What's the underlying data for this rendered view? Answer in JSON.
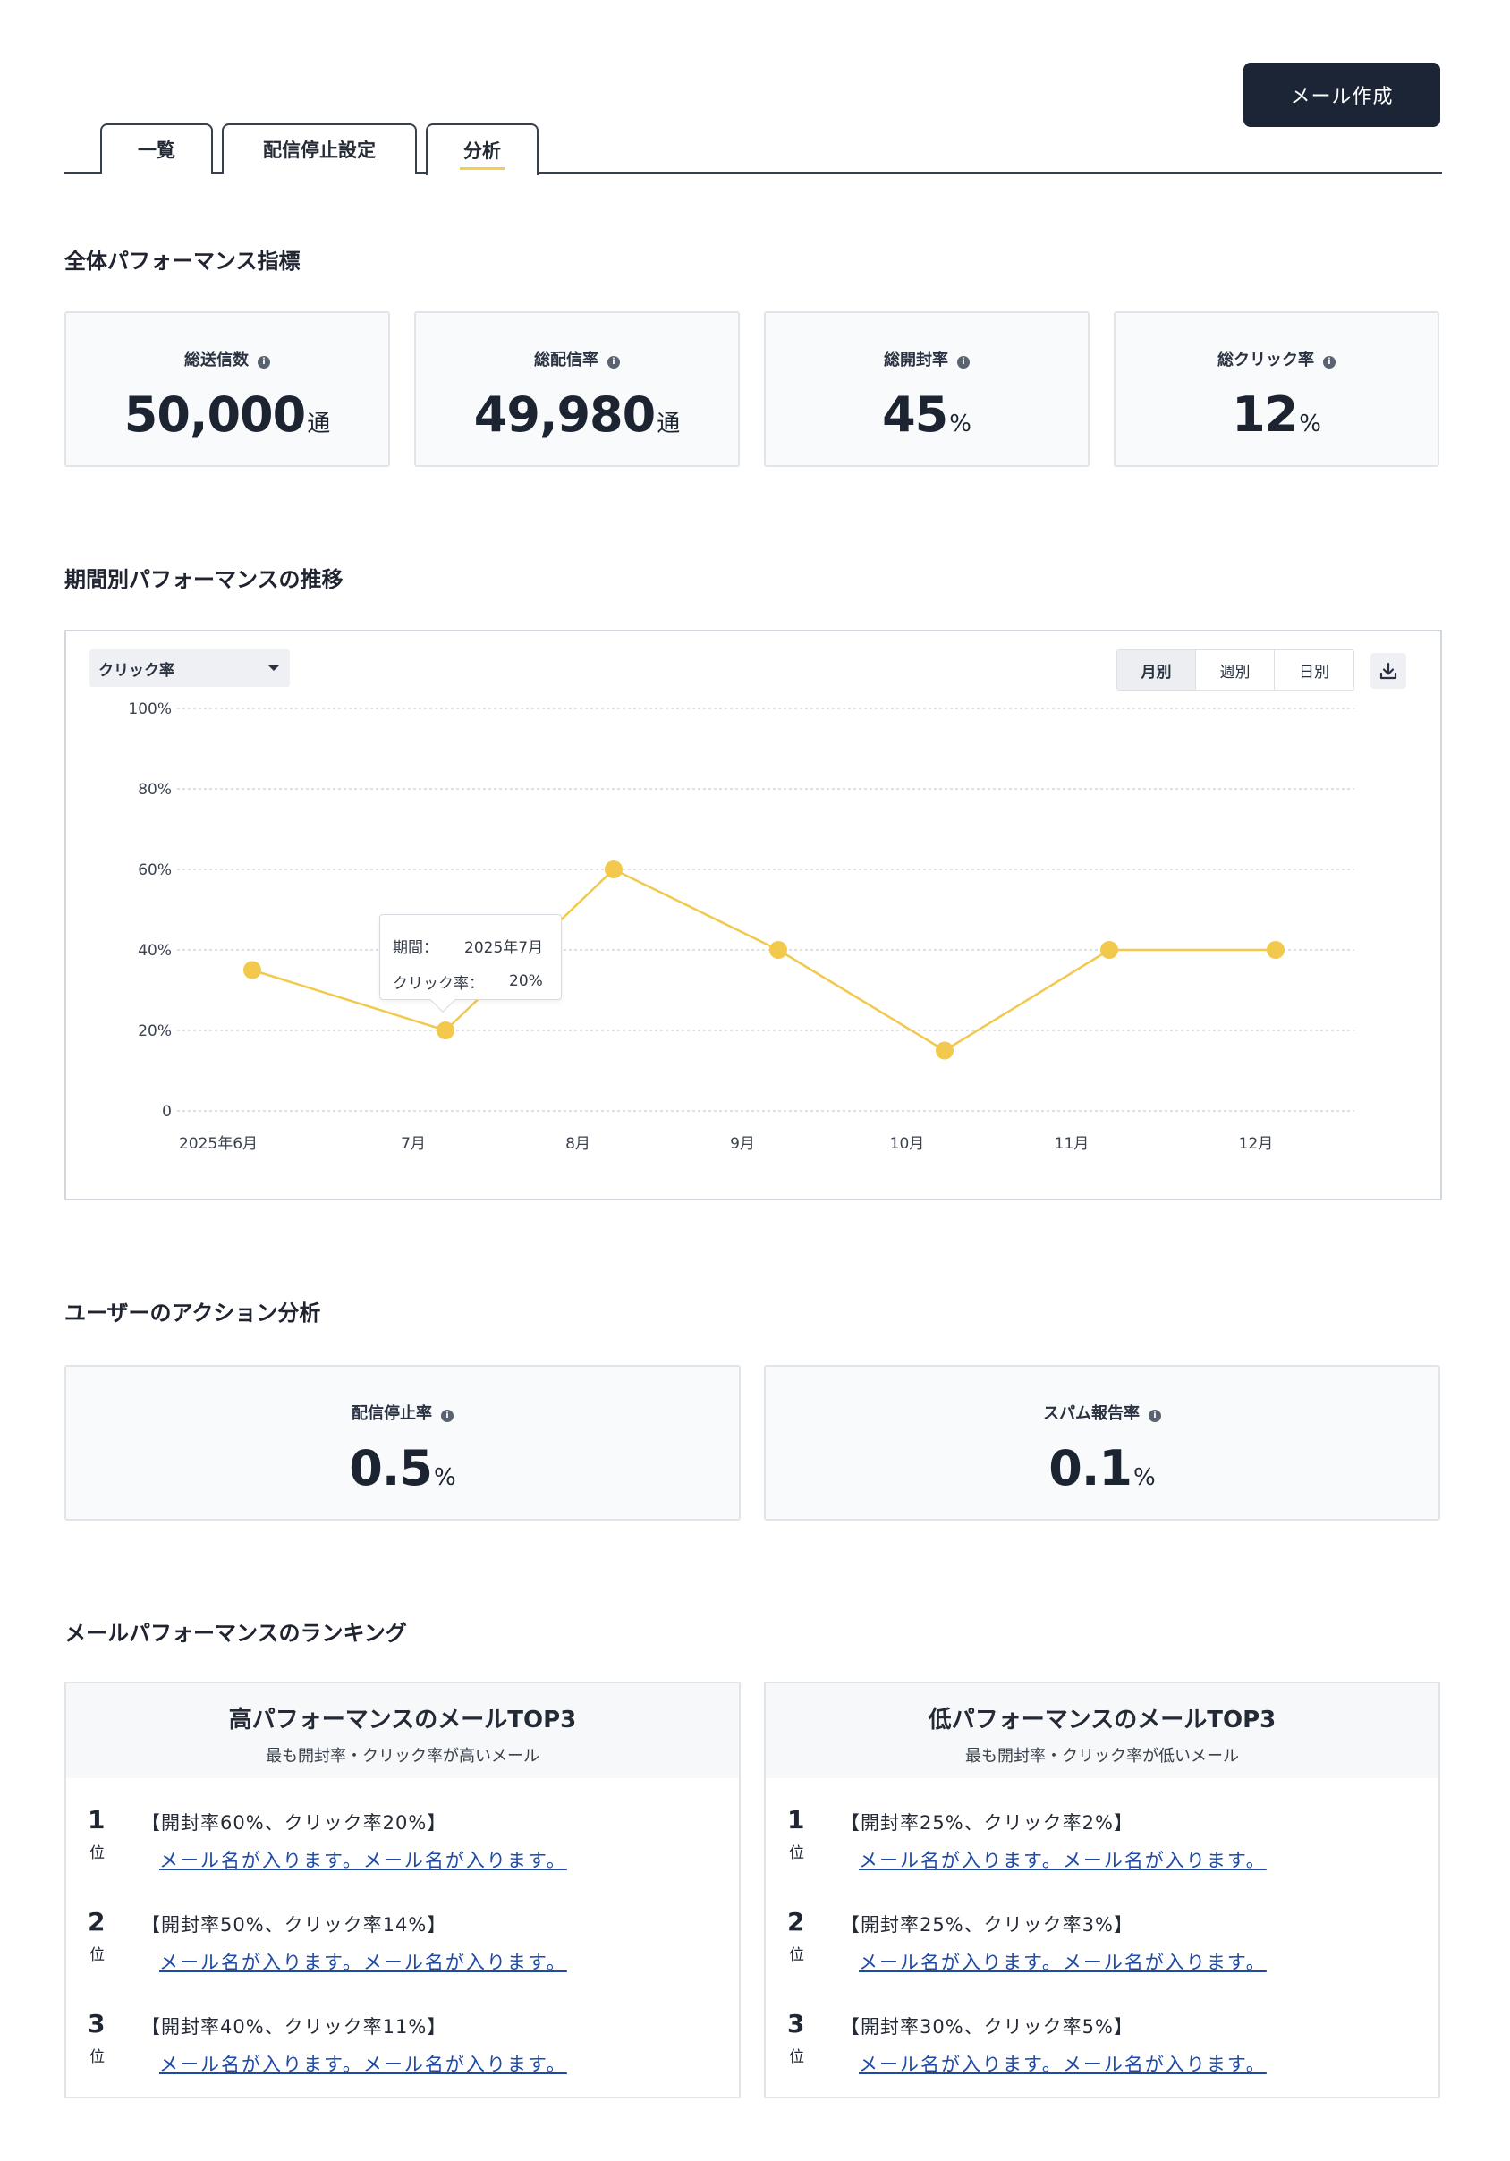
{
  "header": {
    "create_button": "メール作成",
    "tabs": [
      {
        "label": "一覧"
      },
      {
        "label": "配信停止設定"
      },
      {
        "label": "分析"
      }
    ]
  },
  "overall": {
    "title": "全体パフォーマンス指標",
    "cards": [
      {
        "label": "総送信数",
        "value": "50,000",
        "unit": "通"
      },
      {
        "label": "総配信率",
        "value": "49,980",
        "unit": "通"
      },
      {
        "label": "総開封率",
        "value": "45",
        "unit": "%"
      },
      {
        "label": "総クリック率",
        "value": "12",
        "unit": "%"
      }
    ]
  },
  "trend": {
    "title": "期間別パフォーマンスの推移",
    "metric_select": "クリック率",
    "period_options": [
      {
        "label": "月別",
        "active": true
      },
      {
        "label": "週別",
        "active": false
      },
      {
        "label": "日別",
        "active": false
      }
    ],
    "download_icon": "download-icon",
    "tooltip": {
      "period_label": "期間：",
      "period_value": "2025年7月",
      "metric_label": "クリック率：",
      "metric_value": "20%"
    }
  },
  "chart_data": {
    "type": "line",
    "categories": [
      "2025年6月",
      "7月",
      "8月",
      "9月",
      "10月",
      "11月",
      "12月"
    ],
    "series": [
      {
        "values": [
          35,
          20,
          60,
          40,
          15,
          40,
          40
        ],
        "color": "#f2c94c"
      }
    ],
    "y_ticks": [
      "0",
      "20%",
      "40%",
      "60%",
      "80%",
      "100%"
    ],
    "ylim": [
      0,
      100
    ],
    "grid": true
  },
  "actions": {
    "title": "ユーザーのアクション分析",
    "cards": [
      {
        "label": "配信停止率",
        "value": "0.5",
        "unit": "%"
      },
      {
        "label": "スパム報告率",
        "value": "0.1",
        "unit": "%"
      }
    ]
  },
  "ranking": {
    "title": "メールパフォーマンスのランキング",
    "high": {
      "title": "高パフォーマンスのメールTOP3",
      "subtitle": "最も開封率・クリック率が高いメール",
      "items": [
        {
          "rank": "1",
          "suffix": "位",
          "metrics": "【開封率60%、クリック率20%】",
          "link": "メール名が入ります。メール名が入ります。"
        },
        {
          "rank": "2",
          "suffix": "位",
          "metrics": "【開封率50%、クリック率14%】",
          "link": "メール名が入ります。メール名が入ります。"
        },
        {
          "rank": "3",
          "suffix": "位",
          "metrics": "【開封率40%、クリック率11%】",
          "link": "メール名が入ります。メール名が入ります。"
        }
      ]
    },
    "low": {
      "title": "低パフォーマンスのメールTOP3",
      "subtitle": "最も開封率・クリック率が低いメール",
      "items": [
        {
          "rank": "1",
          "suffix": "位",
          "metrics": "【開封率25%、クリック率2%】",
          "link": "メール名が入ります。メール名が入ります。"
        },
        {
          "rank": "2",
          "suffix": "位",
          "metrics": "【開封率25%、クリック率3%】",
          "link": "メール名が入ります。メール名が入ります。"
        },
        {
          "rank": "3",
          "suffix": "位",
          "metrics": "【開封率30%、クリック率5%】",
          "link": "メール名が入ります。メール名が入ります。"
        }
      ]
    }
  }
}
